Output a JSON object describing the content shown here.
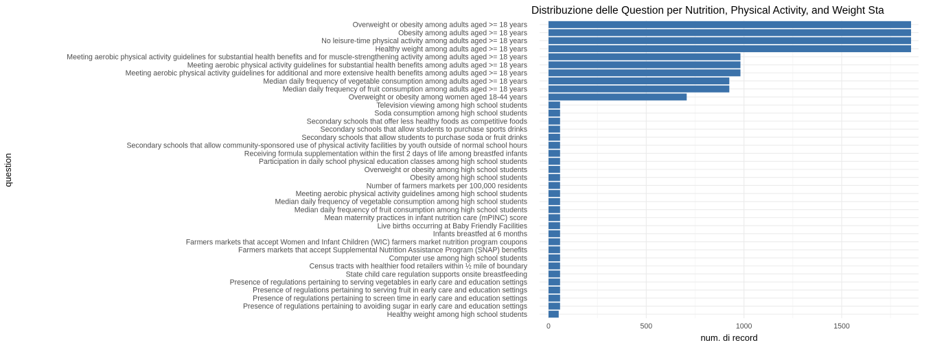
{
  "chart_data": {
    "type": "bar",
    "orientation": "horizontal",
    "title": "Distribuzione delle Question per Nutrition, Physical Activity, and Weight Sta",
    "xlabel": "num. di record",
    "ylabel": "question",
    "xlim": [
      0,
      1900
    ],
    "xticks": [
      0,
      500,
      1000,
      1500
    ],
    "grid": true,
    "bar_color": "#3b72aa",
    "categories": [
      "Overweight or obesity among adults aged >= 18 years",
      "Obesity among adults aged >= 18 years",
      "No leisure-time physical activity among adults aged >= 18 years",
      "Healthy weight among adults aged >= 18 years",
      "Meeting aerobic physical activity guidelines for substantial health benefits and for muscle-strengthening activity among adults aged >= 18 years",
      "Meeting aerobic physical activity guidelines for substantial health benefits among adults aged >= 18 years",
      "Meeting aerobic physical activity guidelines for additional and more extensive health benefits among adults aged >= 18 years",
      "Median daily frequency of vegetable consumption among adults aged >= 18 years",
      "Median daily frequency of fruit consumption among adults aged >= 18 years",
      "Overweight or obesity among women aged 18-44 years",
      "Television viewing among high school students",
      "Soda consumption among high school students",
      "Secondary schools that offer less healthy foods as competitive foods",
      "Secondary schools that allow students to purchase sports drinks",
      "Secondary schools that allow students to purchase soda or fruit drinks",
      "Secondary schools that allow community-sponsored use of physical activity facilities by youth outside of normal school hours",
      "Receiving formula supplementation within the first 2 days of life among breastfed infants",
      "Participation in daily school physical education classes among high school students",
      "Overweight or obesity among high school students",
      "Obesity among high school students",
      "Number of farmers markets per 100,000 residents",
      "Meeting aerobic physical activity guidelines among high school students",
      "Median daily frequency of vegetable consumption among high school students",
      "Median daily frequency of fruit consumption among high school students",
      "Mean maternity practices in infant nutrition care (mPINC) score",
      "Live births occurring at Baby Friendly Facilities",
      "Infants breastfed at 6 months",
      "Farmers markets that accept Women and Infant Children (WIC) farmers market nutrition program coupons",
      "Farmers markets that accept Supplemental Nutrition Assistance Program (SNAP) benefits",
      "Computer use among high school students",
      "Census tracts with healthier food retailers within ½ mile of boundary",
      "State child care regulation supports onsite breastfeeding",
      "Presence of regulations pertaining to serving vegetables in early care and education settings",
      "Presence of regulations pertaining to serving fruit in early care and education settings",
      "Presence of regulations pertaining to screen time in early care and education settings",
      "Presence of regulations pertaining to avoiding sugar in early care and education settings",
      "Healthy weight among high school students"
    ],
    "values": [
      1855,
      1855,
      1855,
      1855,
      982,
      982,
      982,
      925,
      925,
      707,
      59,
      59,
      59,
      59,
      59,
      59,
      59,
      59,
      59,
      59,
      59,
      59,
      59,
      59,
      59,
      59,
      59,
      59,
      59,
      59,
      59,
      59,
      59,
      59,
      59,
      59,
      52
    ]
  }
}
